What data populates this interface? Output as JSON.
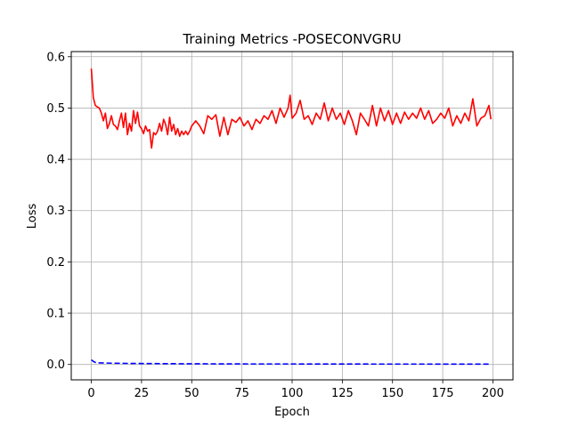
{
  "chart_data": {
    "type": "line",
    "title": "Training Metrics -POSECONVGRU",
    "xlabel": "Epoch",
    "ylabel": "Loss",
    "xlim": [
      -10,
      210
    ],
    "ylim": [
      -0.03,
      0.61
    ],
    "xticks": [
      0,
      25,
      50,
      75,
      100,
      125,
      150,
      175,
      200
    ],
    "yticks": [
      0.0,
      0.1,
      0.2,
      0.3,
      0.4,
      0.5,
      0.6
    ],
    "ytick_labels": [
      "0.0",
      "0.1",
      "0.2",
      "0.3",
      "0.4",
      "0.5",
      "0.6"
    ],
    "grid": true,
    "legend": "none",
    "series": [
      {
        "color": "#ff0000",
        "style": "solid",
        "x": [
          0,
          1,
          2,
          3,
          4,
          5,
          6,
          7,
          8,
          9,
          10,
          11,
          12,
          13,
          14,
          15,
          16,
          17,
          18,
          19,
          20,
          21,
          22,
          23,
          24,
          25,
          26,
          27,
          28,
          29,
          30,
          31,
          32,
          33,
          34,
          35,
          36,
          37,
          38,
          39,
          40,
          41,
          42,
          43,
          44,
          45,
          46,
          47,
          48,
          49,
          50,
          52,
          54,
          56,
          58,
          60,
          62,
          64,
          66,
          68,
          70,
          72,
          74,
          76,
          78,
          80,
          82,
          84,
          86,
          88,
          90,
          92,
          94,
          96,
          98,
          99,
          100,
          102,
          104,
          106,
          108,
          110,
          112,
          114,
          116,
          118,
          120,
          122,
          124,
          126,
          128,
          130,
          132,
          134,
          136,
          138,
          140,
          142,
          144,
          146,
          148,
          150,
          152,
          154,
          156,
          158,
          160,
          162,
          164,
          166,
          168,
          170,
          172,
          174,
          176,
          178,
          180,
          182,
          184,
          186,
          188,
          190,
          192,
          194,
          196,
          198,
          199
        ],
        "values": [
          0.577,
          0.52,
          0.505,
          0.502,
          0.5,
          0.49,
          0.475,
          0.49,
          0.46,
          0.47,
          0.485,
          0.468,
          0.465,
          0.458,
          0.475,
          0.49,
          0.462,
          0.49,
          0.448,
          0.47,
          0.455,
          0.495,
          0.47,
          0.492,
          0.465,
          0.46,
          0.45,
          0.465,
          0.455,
          0.458,
          0.422,
          0.452,
          0.448,
          0.455,
          0.47,
          0.455,
          0.478,
          0.468,
          0.448,
          0.482,
          0.455,
          0.468,
          0.448,
          0.46,
          0.445,
          0.455,
          0.448,
          0.455,
          0.448,
          0.455,
          0.465,
          0.475,
          0.465,
          0.45,
          0.485,
          0.478,
          0.487,
          0.445,
          0.482,
          0.448,
          0.478,
          0.472,
          0.482,
          0.465,
          0.475,
          0.458,
          0.478,
          0.47,
          0.485,
          0.478,
          0.495,
          0.47,
          0.5,
          0.482,
          0.5,
          0.525,
          0.48,
          0.49,
          0.515,
          0.478,
          0.485,
          0.468,
          0.49,
          0.478,
          0.51,
          0.475,
          0.5,
          0.478,
          0.49,
          0.468,
          0.495,
          0.475,
          0.448,
          0.49,
          0.478,
          0.465,
          0.505,
          0.465,
          0.5,
          0.475,
          0.495,
          0.468,
          0.49,
          0.47,
          0.492,
          0.478,
          0.49,
          0.48,
          0.5,
          0.478,
          0.495,
          0.47,
          0.478,
          0.49,
          0.48,
          0.5,
          0.465,
          0.485,
          0.47,
          0.49,
          0.475,
          0.518,
          0.465,
          0.48,
          0.485,
          0.505,
          0.478
        ]
      },
      {
        "color": "#0000ff",
        "style": "dashed",
        "x": [
          0,
          1,
          2,
          3,
          5,
          10,
          20,
          40,
          60,
          80,
          100,
          120,
          140,
          160,
          180,
          199
        ],
        "values": [
          0.009,
          0.006,
          0.004,
          0.003,
          0.003,
          0.0025,
          0.002,
          0.0015,
          0.0012,
          0.001,
          0.001,
          0.0009,
          0.0008,
          0.0008,
          0.0007,
          0.0007
        ]
      }
    ]
  }
}
